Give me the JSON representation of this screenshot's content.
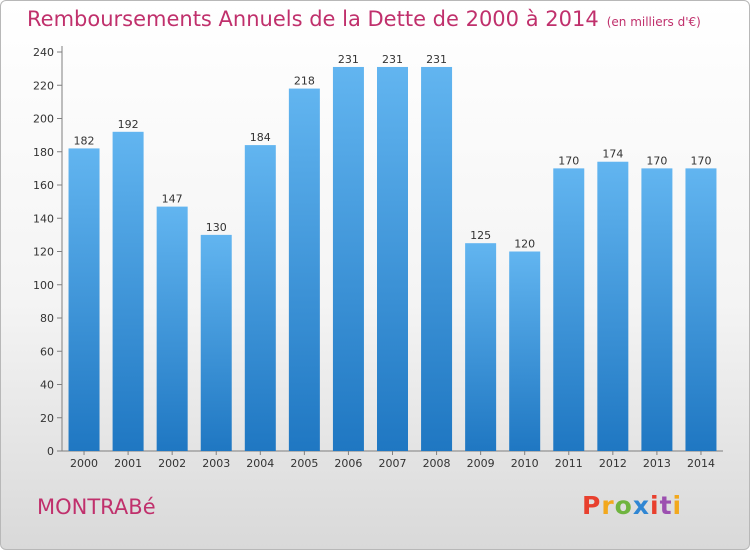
{
  "title": "Remboursements Annuels de la Dette de 2000 à 2014",
  "unit": "(en milliers d'€)",
  "commune": "MONTRABé",
  "logo": "Proxiti",
  "colors": {
    "title": "#c0306c",
    "bar_top": "#62b5f0",
    "bar_bottom": "#1f77c2",
    "logo": [
      "#e8402e",
      "#f2a81d",
      "#6fb43f",
      "#2f86d3",
      "#e8402e",
      "#9c4fb0",
      "#f2a81d"
    ]
  },
  "chart_data": {
    "type": "bar",
    "categories": [
      "2000",
      "2001",
      "2002",
      "2003",
      "2004",
      "2005",
      "2006",
      "2007",
      "2008",
      "2009",
      "2010",
      "2011",
      "2012",
      "2013",
      "2014"
    ],
    "values": [
      182,
      192,
      147,
      130,
      184,
      218,
      231,
      231,
      231,
      125,
      120,
      170,
      174,
      170,
      170
    ],
    "data_labels": [
      "182",
      "192",
      "147",
      "130",
      "184",
      "218",
      "231",
      "231",
      "231",
      "125",
      "120",
      "170",
      "174",
      "170",
      "170"
    ],
    "yticks": [
      "0",
      "20",
      "40",
      "60",
      "80",
      "100",
      "120",
      "140",
      "160",
      "180",
      "200",
      "220",
      "240"
    ],
    "ylim": [
      0,
      240
    ],
    "grid": false
  }
}
